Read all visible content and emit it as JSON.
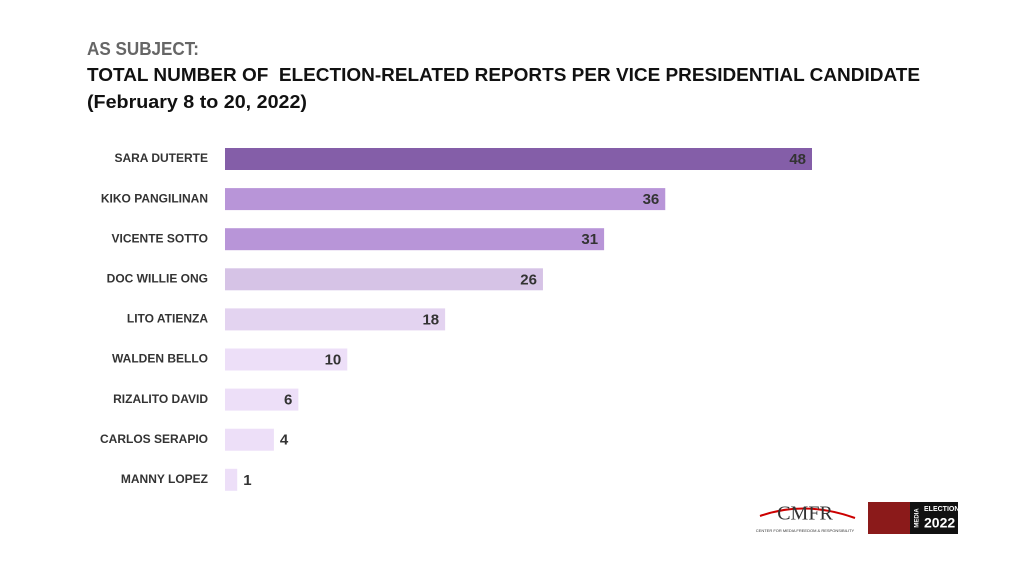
{
  "chart_data": {
    "type": "barh",
    "title_lines": [
      "AS SUBJECT:",
      "TOTAL NUMBER OF  ELECTION-RELATED REPORTS PER VICE PRESIDENTIAL CANDIDATE",
      "(February 8 to 20, 2022)"
    ],
    "categories": [
      "SARA DUTERTE",
      "KIKO PANGILINAN",
      "VICENTE SOTTO",
      "DOC WILLIE ONG",
      "LITO ATIENZA",
      "WALDEN BELLO",
      "RIZALITO DAVID",
      "CARLOS SERAPIO",
      "MANNY LOPEZ"
    ],
    "values": [
      48,
      36,
      31,
      26,
      18,
      10,
      6,
      4,
      1
    ],
    "colors": [
      "#845ea8",
      "#b895d8",
      "#b895d8",
      "#d6c3e6",
      "#e3d3f0",
      "#eddff8",
      "#eddff8",
      "#eddff8",
      "#eddff8"
    ]
  },
  "logos": {
    "cmfr": "CMFR",
    "cmfr_sub": "CENTER FOR MEDIA FREEDOM & RESPONSIBILITY",
    "media": "MEDIA",
    "elections": "ELECTIONS",
    "year": "2022"
  }
}
